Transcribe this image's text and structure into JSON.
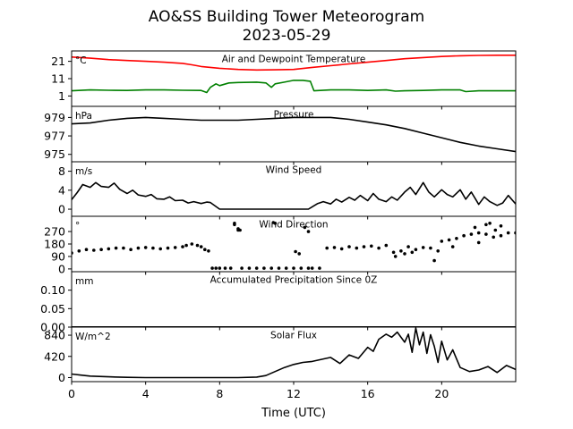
{
  "title_line1": "AO&SS Building Tower Meteorogram",
  "title_line2": "2023-05-29",
  "chart_data": {
    "type": "line",
    "xlabel": "Time (UTC)",
    "xlim": [
      0,
      24
    ],
    "xticks": [
      0,
      4,
      8,
      12,
      16,
      20
    ],
    "panels": [
      {
        "id": "temp",
        "title": "Air and Dewpoint Temperature",
        "unit": "°C",
        "ylim": [
          -5,
          27
        ],
        "yticks": [
          21,
          11,
          1
        ],
        "series": [
          {
            "color": "#ff0000",
            "width": 1.6,
            "x": [
              0,
              1,
              2,
              3,
              4,
              5,
              6,
              6.5,
              7,
              7.5,
              8,
              9,
              10,
              11,
              12,
              13,
              14,
              15,
              16,
              17,
              18,
              19,
              20,
              21,
              22,
              23,
              24
            ],
            "y": [
              23.5,
              22.8,
              22,
              21.5,
              21,
              20.5,
              19.8,
              19,
              18,
              17.5,
              17,
              16.3,
              16,
              16.1,
              16.3,
              17.5,
              18.5,
              19.5,
              20.5,
              21.5,
              22.5,
              23.2,
              23.8,
              24.2,
              24.4,
              24.5,
              24.5
            ]
          },
          {
            "color": "#008000",
            "width": 1.6,
            "x": [
              0,
              1,
              2,
              3,
              4,
              5,
              6,
              7,
              7.3,
              7.5,
              7.8,
              8,
              8.5,
              9,
              10,
              10.5,
              10.8,
              11,
              11.5,
              12,
              12.5,
              12.9,
              13.1,
              14,
              15,
              16,
              17,
              17.5,
              18,
              19,
              20,
              21,
              21.3,
              22,
              23,
              24
            ],
            "y": [
              4,
              4.5,
              4.3,
              4.2,
              4.5,
              4.5,
              4.3,
              4.2,
              3,
              6,
              8,
              7,
              8.5,
              8.8,
              9,
              8.5,
              6,
              8,
              9,
              10,
              10,
              9.5,
              4,
              4.5,
              4.5,
              4.2,
              4.5,
              3.8,
              4,
              4.2,
              4.5,
              4.5,
              3.5,
              4,
              4,
              4
            ]
          }
        ]
      },
      {
        "id": "pres",
        "title": "Pressure",
        "unit": "hPa",
        "ylim": [
          974.2,
          980.2
        ],
        "yticks": [
          979,
          977,
          975
        ],
        "series": [
          {
            "color": "#000000",
            "width": 1.6,
            "x": [
              0,
              1,
              2,
              3,
              4,
              5,
              6,
              7,
              8,
              9,
              10,
              11,
              12,
              13,
              14,
              15,
              16,
              17,
              18,
              19,
              20,
              21,
              22,
              23,
              24
            ],
            "y": [
              978.3,
              978.4,
              978.7,
              978.9,
              979,
              978.9,
              978.8,
              978.7,
              978.7,
              978.7,
              978.8,
              978.9,
              979,
              979,
              979,
              978.8,
              978.5,
              978.2,
              977.8,
              977.3,
              976.8,
              976.3,
              975.9,
              975.6,
              975.3
            ]
          }
        ]
      },
      {
        "id": "wind",
        "title": "Wind Speed",
        "unit": "m/s",
        "ylim": [
          -1.5,
          10
        ],
        "yticks": [
          8,
          4,
          0
        ],
        "series": [
          {
            "color": "#000000",
            "width": 1.6,
            "x": [
              0,
              0.3,
              0.6,
              1,
              1.3,
              1.6,
              2,
              2.3,
              2.6,
              3,
              3.3,
              3.6,
              4,
              4.3,
              4.6,
              5,
              5.3,
              5.6,
              6,
              6.3,
              6.6,
              7,
              7.3,
              7.5,
              8,
              9,
              10,
              11,
              12,
              12.8,
              13,
              13.3,
              13.6,
              14,
              14.3,
              14.6,
              15,
              15.3,
              15.6,
              16,
              16.3,
              16.6,
              17,
              17.3,
              17.6,
              18,
              18.3,
              18.6,
              19,
              19.3,
              19.6,
              20,
              20.3,
              20.6,
              21,
              21.3,
              21.6,
              22,
              22.3,
              22.6,
              23,
              23.3,
              23.6,
              24
            ],
            "y": [
              2,
              3.5,
              5.2,
              4.6,
              5.6,
              4.8,
              4.6,
              5.5,
              4.2,
              3.3,
              4,
              3,
              2.7,
              3.1,
              2.2,
              2.1,
              2.6,
              1.8,
              1.9,
              1.3,
              1.6,
              1.2,
              1.5,
              1.4,
              0,
              0,
              0,
              0,
              0,
              0,
              0.5,
              1.2,
              1.6,
              1.1,
              2.1,
              1.5,
              2.5,
              1.9,
              2.9,
              1.8,
              3.3,
              2.1,
              1.6,
              2.6,
              1.9,
              3.6,
              4.6,
              3.1,
              5.6,
              3.6,
              2.6,
              4.1,
              3.1,
              2.6,
              4.1,
              2.1,
              3.6,
              1,
              2.6,
              1.6,
              0.8,
              1.3,
              2.9,
              1.1
            ]
          }
        ]
      },
      {
        "id": "dir",
        "title": "Wind Direction",
        "unit": "°",
        "ylim": [
          -20,
          380
        ],
        "yticks": [
          270,
          180,
          90,
          0
        ],
        "series": [
          {
            "color": "#000000",
            "width": 0,
            "marker": "dot",
            "x": [
              0,
              0.4,
              0.8,
              1.2,
              1.6,
              2,
              2.4,
              2.8,
              3.2,
              3.6,
              4,
              4.4,
              4.8,
              5.2,
              5.6,
              6,
              6.2,
              6.5,
              6.8,
              7,
              7.2,
              7.4,
              7.6,
              7.8,
              8,
              8.3,
              8.6,
              8.8,
              9,
              9.2,
              9.6,
              10,
              10.4,
              10.8,
              11.2,
              11.6,
              12,
              12.4,
              12.8,
              13,
              13.4,
              13.8,
              14.2,
              14.6,
              15,
              15.4,
              15.8,
              16.2,
              16.6,
              17,
              17.4,
              17.8,
              18.2,
              18.6,
              19,
              19.4,
              19.8,
              20,
              20.4,
              20.8,
              21.2,
              21.6,
              22,
              22.4,
              22.8,
              23.2,
              23.6,
              24
            ],
            "y": [
              115,
              130,
              140,
              135,
              140,
              145,
              150,
              150,
              140,
              150,
              155,
              150,
              145,
              150,
              155,
              160,
              170,
              180,
              170,
              160,
              140,
              130,
              5,
              5,
              5,
              5,
              5,
              320,
              280,
              5,
              5,
              5,
              5,
              5,
              5,
              5,
              5,
              5,
              5,
              5,
              5,
              150,
              155,
              145,
              160,
              150,
              160,
              165,
              150,
              170,
              120,
              130,
              160,
              140,
              155,
              150,
              130,
              200,
              210,
              220,
              240,
              250,
              260,
              250,
              230,
              240,
              260,
              260
            ]
          },
          {
            "color": "#000000",
            "width": 0,
            "marker": "dot",
            "x": [
              8.8,
              9,
              9.1,
              10.9,
              11,
              12.1,
              12.3,
              12.6,
              12.8,
              17.5,
              18,
              18.4,
              19.6,
              20.6,
              21.8,
              22,
              22.4,
              22.6,
              22.9,
              23.2
            ],
            "y": [
              330,
              290,
              280,
              335,
              330,
              125,
              110,
              300,
              270,
              90,
              110,
              120,
              60,
              160,
              300,
              190,
              320,
              330,
              280,
              310
            ]
          }
        ]
      },
      {
        "id": "precip",
        "title": "Accumulated Precipitation Since 0Z",
        "unit": "mm",
        "ylim": [
          0,
          0.15
        ],
        "yticks": [
          0.1,
          0.05,
          0.0
        ],
        "series": [
          {
            "color": "#000000",
            "width": 2,
            "x": [
              0,
              24
            ],
            "y": [
              0,
              0
            ]
          }
        ]
      },
      {
        "id": "solar",
        "title": "Solar Flux",
        "unit": "W/m^2",
        "ylim": [
          -80,
          1000
        ],
        "yticks": [
          840,
          420,
          0
        ],
        "series": [
          {
            "color": "#000000",
            "width": 1.6,
            "x": [
              0,
              0.5,
              1,
              2,
              3,
              4,
              5,
              6,
              7,
              8,
              9,
              10,
              10.5,
              11,
              11.5,
              12,
              12.5,
              13,
              13.5,
              14,
              14.5,
              15,
              15.5,
              16,
              16.3,
              16.6,
              17,
              17.3,
              17.6,
              18,
              18.2,
              18.4,
              18.6,
              18.8,
              19,
              19.2,
              19.4,
              19.6,
              19.8,
              20,
              20.3,
              20.6,
              21,
              21.5,
              22,
              22.5,
              23,
              23.5,
              24
            ],
            "y": [
              70,
              50,
              30,
              15,
              5,
              0,
              0,
              0,
              0,
              0,
              0,
              10,
              40,
              120,
              200,
              260,
              300,
              320,
              360,
              400,
              280,
              450,
              380,
              600,
              520,
              760,
              860,
              800,
              900,
              700,
              860,
              500,
              980,
              650,
              900,
              480,
              850,
              620,
              300,
              720,
              350,
              550,
              200,
              120,
              150,
              220,
              100,
              240,
              160
            ]
          }
        ]
      }
    ]
  }
}
